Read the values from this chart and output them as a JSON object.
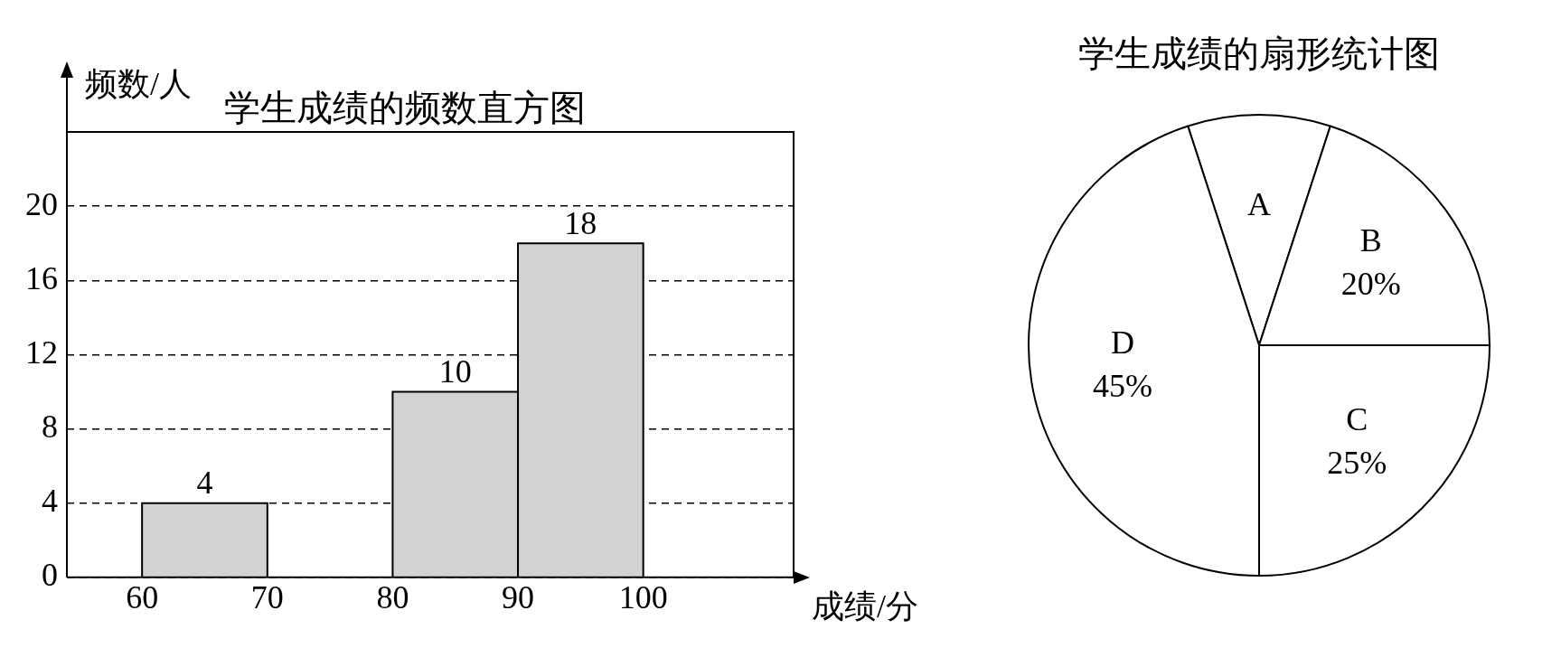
{
  "chart_data": [
    {
      "type": "histogram",
      "title": "学生成绩的频数直方图",
      "xlabel": "成绩/分",
      "ylabel": "频数/人",
      "bins": [
        60,
        70,
        80,
        90,
        100
      ],
      "values": [
        4,
        null,
        10,
        18
      ],
      "color": "#d3d3d3",
      "xlim": [
        54,
        112
      ],
      "ylim": [
        0,
        24
      ],
      "xticks": [
        60,
        70,
        80,
        90,
        100
      ],
      "yticks": [
        0,
        4,
        8,
        12,
        16,
        20
      ],
      "grid": "y",
      "data_labels": true,
      "legend": false
    },
    {
      "type": "pie",
      "title": "学生成绩的扇形统计图",
      "categories": [
        "A",
        "B",
        "C",
        "D"
      ],
      "values": [
        10,
        20,
        25,
        45
      ],
      "colors": [
        "#ffffff",
        "#ffffff",
        "#ffffff",
        "#ffffff"
      ],
      "value_labels": [
        null,
        "20%",
        "25%",
        "45%"
      ],
      "legend": false
    }
  ]
}
